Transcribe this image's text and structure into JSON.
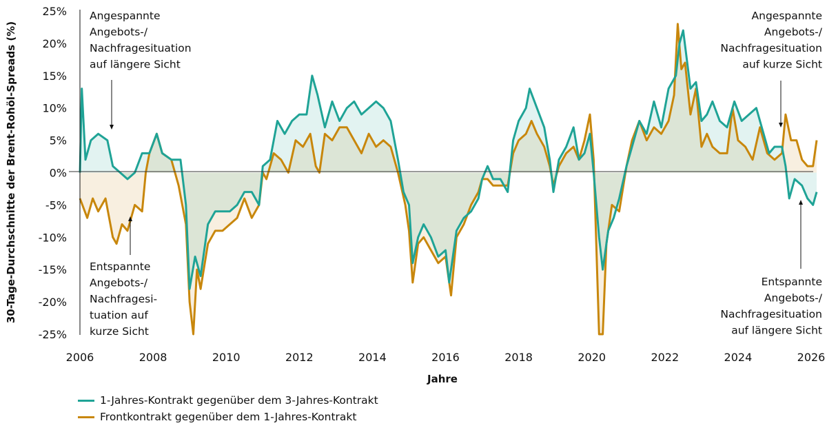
{
  "chart_data": {
    "type": "area",
    "ylabel": "30-Tage-Durchschnitte der Brent-Rohöl-Spreads (%)",
    "xlabel": "Jahre",
    "xlim": [
      2006,
      2026.15
    ],
    "ylim": [
      -25,
      25
    ],
    "x_ticks": [
      "2006",
      "2008",
      "2010",
      "2012",
      "2014",
      "2016",
      "2018",
      "2020",
      "2022",
      "2024",
      "2026"
    ],
    "y_ticks": [
      "25%",
      "20%",
      "15%",
      "10%",
      "5%",
      "0%",
      "-5%",
      "-10%",
      "-15%",
      "-20%",
      "-25%"
    ],
    "grid": false,
    "legend_placement": "bottom-left",
    "series": [
      {
        "name": "1-Jahres-Kontrakt gegenüber dem 3-Jahres-Kontrakt",
        "color": "#1fa396",
        "x": [
          2006.0,
          2006.05,
          2006.15,
          2006.3,
          2006.5,
          2006.75,
          2006.9,
          2007.1,
          2007.3,
          2007.5,
          2007.7,
          2007.9,
          2008.1,
          2008.25,
          2008.5,
          2008.75,
          2008.9,
          2009.0,
          2009.15,
          2009.3,
          2009.5,
          2009.7,
          2009.9,
          2010.1,
          2010.3,
          2010.5,
          2010.7,
          2010.9,
          2011.0,
          2011.2,
          2011.4,
          2011.6,
          2011.8,
          2012.0,
          2012.2,
          2012.35,
          2012.5,
          2012.7,
          2012.9,
          2013.1,
          2013.3,
          2013.5,
          2013.7,
          2013.9,
          2014.1,
          2014.3,
          2014.5,
          2014.7,
          2014.85,
          2015.0,
          2015.1,
          2015.25,
          2015.4,
          2015.6,
          2015.8,
          2016.0,
          2016.1,
          2016.3,
          2016.5,
          2016.7,
          2016.9,
          2017.0,
          2017.15,
          2017.3,
          2017.5,
          2017.7,
          2017.85,
          2018.0,
          2018.2,
          2018.3,
          2018.5,
          2018.7,
          2018.85,
          2018.95,
          2019.1,
          2019.3,
          2019.5,
          2019.65,
          2019.8,
          2019.95,
          2020.05,
          2020.2,
          2020.3,
          2020.45,
          2020.6,
          2020.75,
          2020.95,
          2021.1,
          2021.3,
          2021.5,
          2021.7,
          2021.9,
          2022.1,
          2022.3,
          2022.4,
          2022.5,
          2022.7,
          2022.85,
          2023.0,
          2023.15,
          2023.3,
          2023.5,
          2023.7,
          2023.9,
          2024.1,
          2024.3,
          2024.5,
          2024.7,
          2024.85,
          2025.0,
          2025.2,
          2025.3,
          2025.4,
          2025.55,
          2025.75,
          2025.9,
          2026.05,
          2026.15
        ],
        "values": [
          0,
          13,
          2,
          5,
          6,
          5,
          1,
          0,
          -1,
          0,
          3,
          3,
          6,
          3,
          2,
          2,
          -5,
          -18,
          -13,
          -16,
          -8,
          -6,
          -6,
          -6,
          -5,
          -3,
          -3,
          -5,
          1,
          2,
          8,
          6,
          8,
          9,
          9,
          15,
          12,
          7,
          11,
          8,
          10,
          11,
          9,
          10,
          11,
          10,
          8,
          2,
          -3,
          -5,
          -14,
          -10,
          -8,
          -10,
          -13,
          -12,
          -17,
          -9,
          -7,
          -6,
          -4,
          -1,
          1,
          -1,
          -1,
          -3,
          5,
          8,
          10,
          13,
          10,
          7,
          2,
          -3,
          2,
          4,
          7,
          2,
          3,
          6,
          0,
          -10,
          -15,
          -9,
          -7,
          -4,
          1,
          4,
          8,
          6,
          11,
          7,
          13,
          15,
          20,
          22,
          13,
          14,
          8,
          9,
          11,
          8,
          7,
          11,
          8,
          9,
          10,
          6,
          3,
          4,
          4,
          1,
          -4,
          -1,
          -2,
          -4,
          -5,
          -3
        ]
      },
      {
        "name": "Frontkontrakt gegenüber dem 1-Jahres-Kontrakt",
        "color": "#c8870c",
        "x": [
          2006.0,
          2006.2,
          2006.35,
          2006.5,
          2006.7,
          2006.9,
          2007.0,
          2007.15,
          2007.3,
          2007.5,
          2007.7,
          2007.8,
          2007.9,
          2008.1,
          2008.25,
          2008.5,
          2008.7,
          2008.9,
          2009.0,
          2009.1,
          2009.2,
          2009.3,
          2009.5,
          2009.7,
          2009.9,
          2010.1,
          2010.3,
          2010.5,
          2010.7,
          2010.9,
          2011.0,
          2011.1,
          2011.3,
          2011.5,
          2011.7,
          2011.9,
          2012.1,
          2012.3,
          2012.45,
          2012.55,
          2012.7,
          2012.9,
          2013.1,
          2013.3,
          2013.5,
          2013.7,
          2013.9,
          2014.1,
          2014.3,
          2014.5,
          2014.7,
          2014.9,
          2015.0,
          2015.1,
          2015.25,
          2015.4,
          2015.6,
          2015.8,
          2016.0,
          2016.15,
          2016.3,
          2016.5,
          2016.7,
          2016.9,
          2017.0,
          2017.15,
          2017.3,
          2017.5,
          2017.7,
          2017.85,
          2018.0,
          2018.2,
          2018.35,
          2018.5,
          2018.7,
          2018.85,
          2018.95,
          2019.1,
          2019.3,
          2019.5,
          2019.65,
          2019.8,
          2019.95,
          2020.05,
          2020.2,
          2020.3,
          2020.4,
          2020.55,
          2020.75,
          2020.95,
          2021.1,
          2021.3,
          2021.5,
          2021.7,
          2021.9,
          2022.1,
          2022.25,
          2022.35,
          2022.45,
          2022.55,
          2022.7,
          2022.85,
          2023.0,
          2023.15,
          2023.3,
          2023.5,
          2023.7,
          2023.85,
          2024.0,
          2024.2,
          2024.4,
          2024.6,
          2024.8,
          2025.0,
          2025.2,
          2025.3,
          2025.45,
          2025.6,
          2025.75,
          2025.9,
          2026.05,
          2026.15
        ],
        "values": [
          -4,
          -7,
          -4,
          -6,
          -4,
          -10,
          -11,
          -8,
          -9,
          -5,
          -6,
          0,
          3,
          6,
          3,
          2,
          -2,
          -8,
          -20,
          -25,
          -15,
          -18,
          -11,
          -9,
          -9,
          -8,
          -7,
          -4,
          -7,
          -5,
          0,
          -1,
          3,
          2,
          0,
          5,
          4,
          6,
          1,
          0,
          6,
          5,
          7,
          7,
          5,
          3,
          6,
          4,
          5,
          4,
          0,
          -5,
          -9,
          -17,
          -11,
          -10,
          -12,
          -14,
          -13,
          -19,
          -10,
          -8,
          -5,
          -3,
          -1,
          -1,
          -2,
          -2,
          -2,
          3,
          5,
          6,
          8,
          6,
          4,
          1,
          -2,
          1,
          3,
          4,
          2,
          5,
          9,
          2,
          -25,
          -25,
          -11,
          -5,
          -6,
          1,
          5,
          8,
          5,
          7,
          6,
          8,
          12,
          23,
          16,
          17,
          9,
          13,
          4,
          6,
          4,
          3,
          3,
          10,
          5,
          4,
          2,
          7,
          3,
          2,
          3,
          9,
          5,
          5,
          2,
          1,
          1,
          5
        ]
      }
    ],
    "annotations": [
      {
        "lines": [
          "Angespannte",
          "Angebots-/",
          "Nachfragesituation",
          "auf längere Sicht"
        ]
      },
      {
        "lines": [
          "Entspannte",
          "Angebots-/",
          "Nachfragesi-",
          "tuation auf",
          "kurze Sicht"
        ]
      },
      {
        "lines": [
          "Angespannte",
          "Angebots-/",
          "Nachfragesituation",
          "auf kurze Sicht"
        ]
      },
      {
        "lines": [
          "Entspannte",
          "Angebots-/",
          "Nachfragesituation",
          "auf längere Sicht"
        ]
      }
    ]
  }
}
